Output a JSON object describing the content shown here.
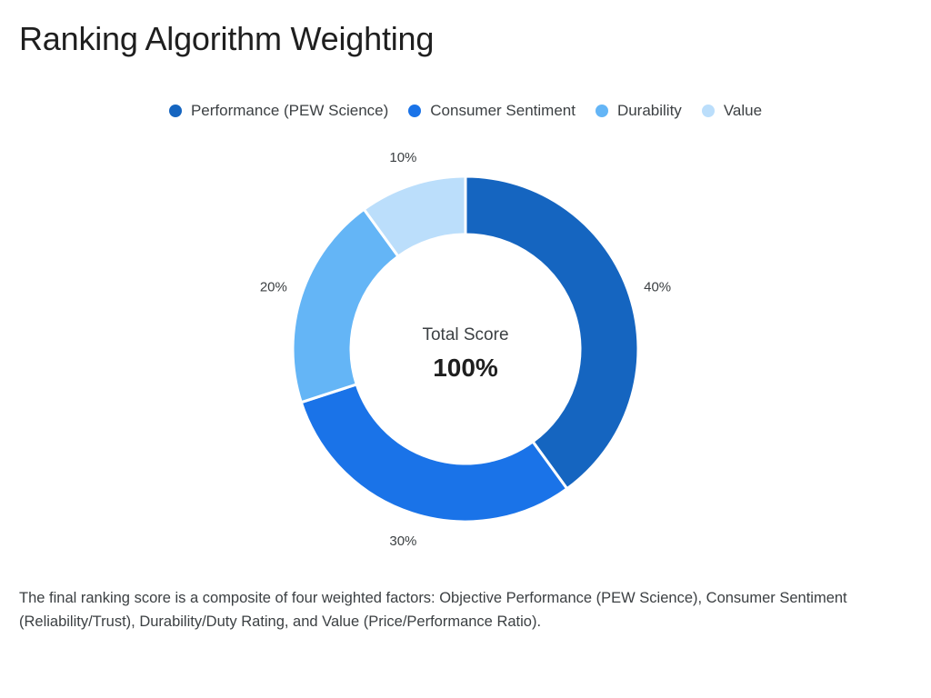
{
  "page": {
    "title": "Ranking Algorithm Weighting",
    "description": "The final ranking score is a composite of four weighted factors: Objective Performance (PEW Science), Consumer Sentiment (Reliability/Trust), Durability/Duty Rating, and Value (Price/Performance Ratio)."
  },
  "chart_data": {
    "type": "pie",
    "style": "donut",
    "title": "Ranking Algorithm Weighting",
    "legend_position": "top",
    "center_label": "Total Score",
    "center_value": "100%",
    "slices": [
      {
        "name": "Performance (PEW Science)",
        "value": 40,
        "label": "40%",
        "color": "#1565c0"
      },
      {
        "name": "Consumer Sentiment",
        "value": 30,
        "label": "30%",
        "color": "#1a73e8"
      },
      {
        "name": "Durability",
        "value": 20,
        "label": "20%",
        "color": "#64b5f6"
      },
      {
        "name": "Value",
        "value": 10,
        "label": "10%",
        "color": "#bbdefb"
      }
    ]
  }
}
